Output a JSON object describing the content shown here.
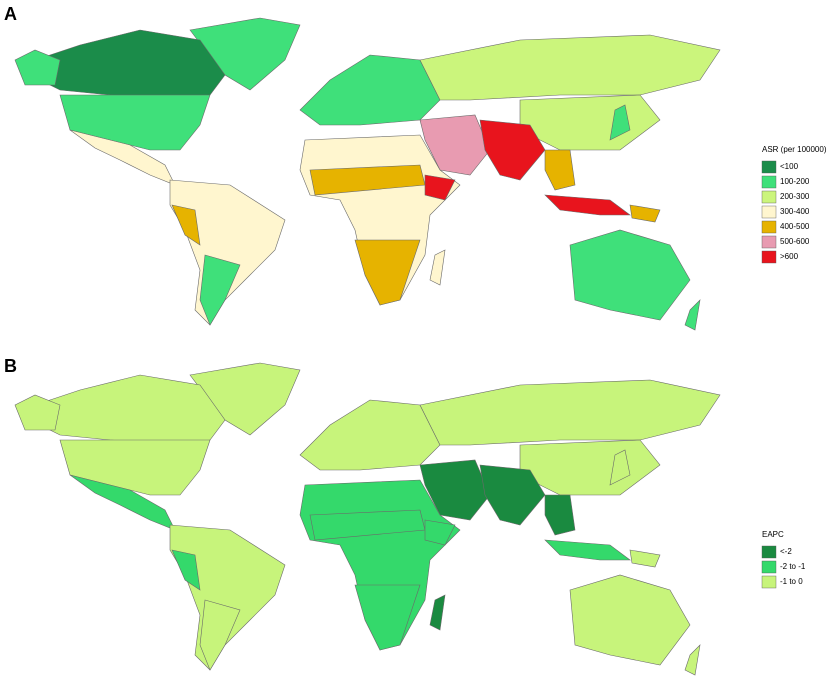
{
  "panels": [
    {
      "label": "A",
      "legend": {
        "title": "ASR (per 100000)",
        "items": [
          {
            "label": "<100",
            "color": "#1b8c4a"
          },
          {
            "label": "100-200",
            "color": "#3fe07a"
          },
          {
            "label": "200-300",
            "color": "#cbf57c"
          },
          {
            "label": "300-400",
            "color": "#fff6cf"
          },
          {
            "label": "400-500",
            "color": "#e6b300"
          },
          {
            "label": "500-600",
            "color": "#e89bb1"
          },
          {
            "label": ">600",
            "color": "#e8141d"
          }
        ]
      }
    },
    {
      "label": "B",
      "legend": {
        "title": "EAPC",
        "items": [
          {
            "label": "<-2",
            "color": "#1a8a40"
          },
          {
            "label": "-2 to -1",
            "color": "#34d96b"
          },
          {
            "label": "-1 to 0",
            "color": "#c7f47b"
          }
        ]
      }
    }
  ]
}
